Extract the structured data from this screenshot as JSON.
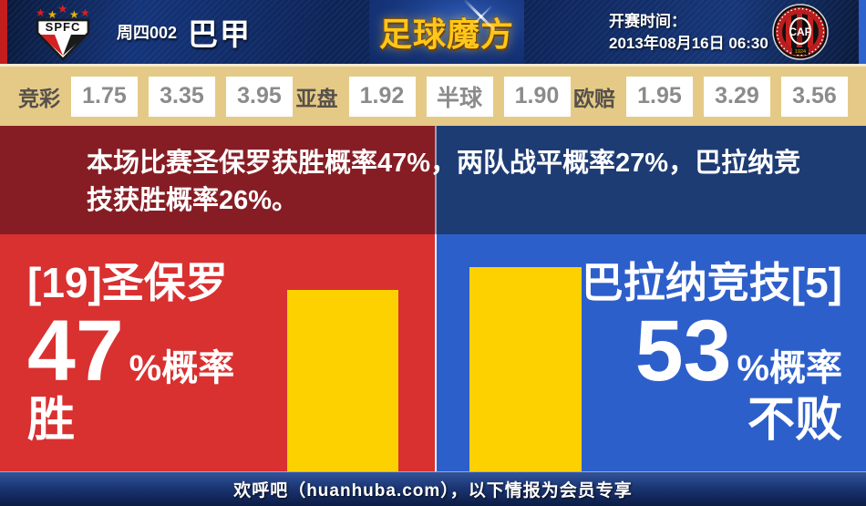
{
  "header": {
    "home_badge_text": "SPFC",
    "match_no": "周四002",
    "league": "巴甲",
    "site_logo": "足球魔方",
    "kickoff_label": "开赛时间：",
    "kickoff_time": "2013年08月16日 06:30",
    "away_badge_text": "CAP",
    "away_badge_year": "1924"
  },
  "odds": {
    "groups": [
      {
        "label": "竞彩",
        "values": [
          "1.75",
          "3.35",
          "3.95"
        ]
      },
      {
        "label": "亚盘",
        "values": [
          "1.92",
          "半球",
          "1.90"
        ]
      },
      {
        "label": "欧赔",
        "values": [
          "1.95",
          "3.29",
          "3.56"
        ]
      }
    ]
  },
  "summary": {
    "text": "本场比赛圣保罗获胜概率47%，两队战平概率27%，巴拉纳竞技获胜概率26%。"
  },
  "prediction": {
    "home": {
      "name": "[19]圣保罗",
      "prob_value": "47",
      "prob_label": "%概率",
      "outcome": "胜",
      "prob_pct": 47
    },
    "away": {
      "name": "巴拉纳竞技[5]",
      "prob_value": "53",
      "prob_label": "%概率",
      "outcome": "不败",
      "prob_pct": 53
    }
  },
  "chart_data": {
    "type": "bar",
    "categories": [
      "圣保罗 胜",
      "巴拉纳竞技 不败"
    ],
    "values": [
      47,
      53
    ],
    "unit": "%",
    "note": "yellow bar heights proportional to probability"
  },
  "footer": {
    "text": "欢呼吧（huanhuba.com），以下情报为会员专享"
  },
  "colors": {
    "strip_red": "#c41d1d",
    "strip_blue": "#2e62cc",
    "gold_line": "#f3ead0",
    "odds_bg": "#e5ca87",
    "odds_label": "#55504a",
    "odds_value": "#8b8b8b",
    "box_white": "#ffffff",
    "band_red": "#871d24",
    "band_blue": "#1e3c74",
    "main_red": "#d93030",
    "main_blue": "#2d5fcb",
    "bar_yellow": "#fdd100",
    "logo_gold": "#ffc61a"
  }
}
